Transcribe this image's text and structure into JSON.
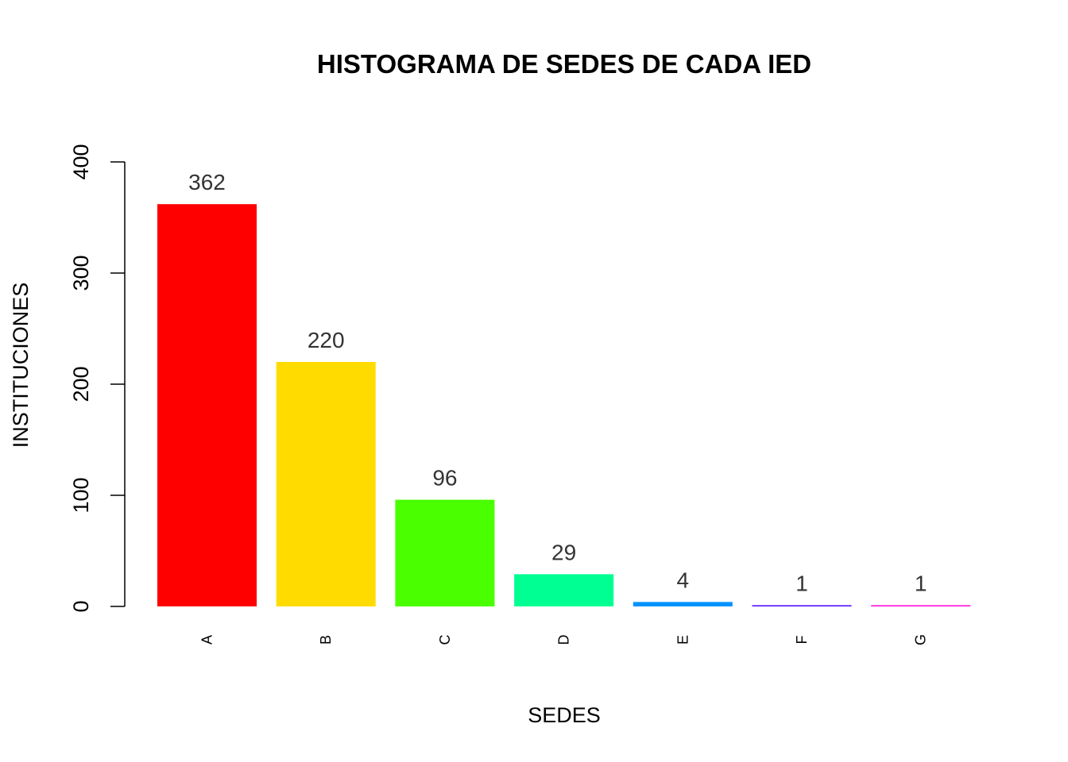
{
  "chart_data": {
    "type": "bar",
    "title": "HISTOGRAMA DE SEDES DE CADA IED",
    "xlabel": "SEDES",
    "ylabel": "INSTITUCIONES",
    "categories": [
      "A",
      "B",
      "C",
      "D",
      "E",
      "F",
      "G"
    ],
    "values": [
      362,
      220,
      96,
      29,
      4,
      1,
      1
    ],
    "data_labels": [
      "362",
      "220",
      "96",
      "29",
      "4",
      "1",
      "1"
    ],
    "colors": [
      "#FF0000",
      "#FFDB00",
      "#49FF00",
      "#00FF92",
      "#0092FF",
      "#4900FF",
      "#FF00DB"
    ],
    "ylim": [
      0,
      400
    ],
    "yticks": [
      0,
      100,
      200,
      300,
      400
    ],
    "ytick_labels": [
      "0",
      "100",
      "200",
      "300",
      "400"
    ],
    "grid": false,
    "legend": "none",
    "category_label_orientation": "vertical"
  }
}
